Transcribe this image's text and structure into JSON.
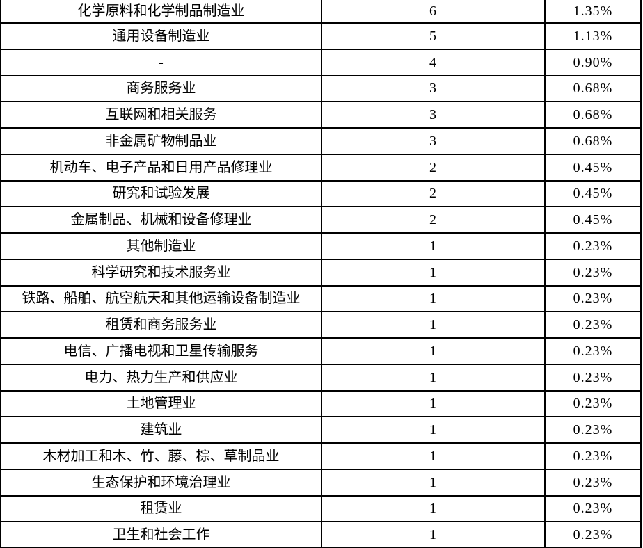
{
  "table": {
    "background": "#ffffff",
    "border_color": "#000000",
    "text_color": "#000000",
    "rows": [
      [
        "化学原料和化学制品制造业",
        "6",
        "1.35%"
      ],
      [
        "通用设备制造业",
        "5",
        "1.13%"
      ],
      [
        "-",
        "4",
        "0.90%"
      ],
      [
        "商务服务业",
        "3",
        "0.68%"
      ],
      [
        "互联网和相关服务",
        "3",
        "0.68%"
      ],
      [
        "非金属矿物制品业",
        "3",
        "0.68%"
      ],
      [
        "机动车、电子产品和日用产品修理业",
        "2",
        "0.45%"
      ],
      [
        "研究和试验发展",
        "2",
        "0.45%"
      ],
      [
        "金属制品、机械和设备修理业",
        "2",
        "0.45%"
      ],
      [
        "其他制造业",
        "1",
        "0.23%"
      ],
      [
        "科学研究和技术服务业",
        "1",
        "0.23%"
      ],
      [
        "铁路、船舶、航空航天和其他运输设备制造业",
        "1",
        "0.23%"
      ],
      [
        "租赁和商务服务业",
        "1",
        "0.23%"
      ],
      [
        "电信、广播电视和卫星传输服务",
        "1",
        "0.23%"
      ],
      [
        "电力、热力生产和供应业",
        "1",
        "0.23%"
      ],
      [
        "土地管理业",
        "1",
        "0.23%"
      ],
      [
        "建筑业",
        "1",
        "0.23%"
      ],
      [
        "木材加工和木、竹、藤、棕、草制品业",
        "1",
        "0.23%"
      ],
      [
        "生态保护和环境治理业",
        "1",
        "0.23%"
      ],
      [
        "租赁业",
        "1",
        "0.23%"
      ],
      [
        "卫生和社会工作",
        "1",
        "0.23%"
      ]
    ]
  }
}
